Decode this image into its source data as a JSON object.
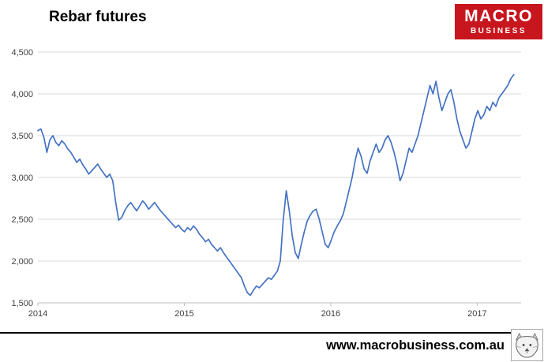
{
  "header": {
    "title": "Rebar futures"
  },
  "logo": {
    "line1": "MACRO",
    "line2": "BUSINESS",
    "bg_color": "#c8161e",
    "text_color": "#ffffff"
  },
  "footer": {
    "url": "www.macrobusiness.com.au"
  },
  "chart_data": {
    "type": "line",
    "title": "Rebar futures",
    "series_name": "Rebar futures",
    "line_color": "#4472c4",
    "grid_color": "#d9d9d9",
    "axis_color": "#bfbfbf",
    "tick_text_color": "#404040",
    "grid": true,
    "legend": "none",
    "x_start": 2014,
    "x_data_end": 2017.25,
    "x_axis_end": 2017.3,
    "x_ticks": [
      2014,
      2015,
      2016,
      2017
    ],
    "ylim": [
      1500,
      4500
    ],
    "y_ticks": [
      1500,
      2000,
      2500,
      3000,
      3500,
      4000,
      4500
    ],
    "values": [
      3560,
      3580,
      3480,
      3300,
      3450,
      3500,
      3420,
      3380,
      3440,
      3400,
      3340,
      3300,
      3240,
      3180,
      3220,
      3150,
      3100,
      3040,
      3080,
      3120,
      3160,
      3100,
      3050,
      3000,
      3040,
      2960,
      2700,
      2490,
      2520,
      2600,
      2660,
      2700,
      2650,
      2600,
      2660,
      2720,
      2680,
      2620,
      2660,
      2700,
      2650,
      2600,
      2560,
      2520,
      2480,
      2440,
      2400,
      2430,
      2380,
      2350,
      2400,
      2370,
      2420,
      2380,
      2320,
      2280,
      2230,
      2260,
      2200,
      2160,
      2120,
      2160,
      2100,
      2050,
      2000,
      1950,
      1900,
      1850,
      1800,
      1700,
      1620,
      1590,
      1650,
      1700,
      1680,
      1720,
      1760,
      1800,
      1780,
      1830,
      1880,
      2000,
      2500,
      2840,
      2600,
      2300,
      2100,
      2030,
      2200,
      2350,
      2480,
      2550,
      2600,
      2620,
      2500,
      2350,
      2200,
      2160,
      2250,
      2350,
      2420,
      2480,
      2560,
      2700,
      2850,
      3000,
      3200,
      3350,
      3250,
      3100,
      3050,
      3200,
      3300,
      3400,
      3300,
      3350,
      3450,
      3500,
      3420,
      3300,
      3150,
      2960,
      3050,
      3200,
      3350,
      3300,
      3400,
      3500,
      3650,
      3800,
      3950,
      4100,
      4000,
      4150,
      3950,
      3800,
      3900,
      4000,
      4050,
      3900,
      3700,
      3550,
      3450,
      3350,
      3400,
      3550,
      3700,
      3800,
      3700,
      3750,
      3850,
      3800,
      3900,
      3850,
      3950,
      4000,
      4050,
      4100,
      4180,
      4230
    ]
  }
}
